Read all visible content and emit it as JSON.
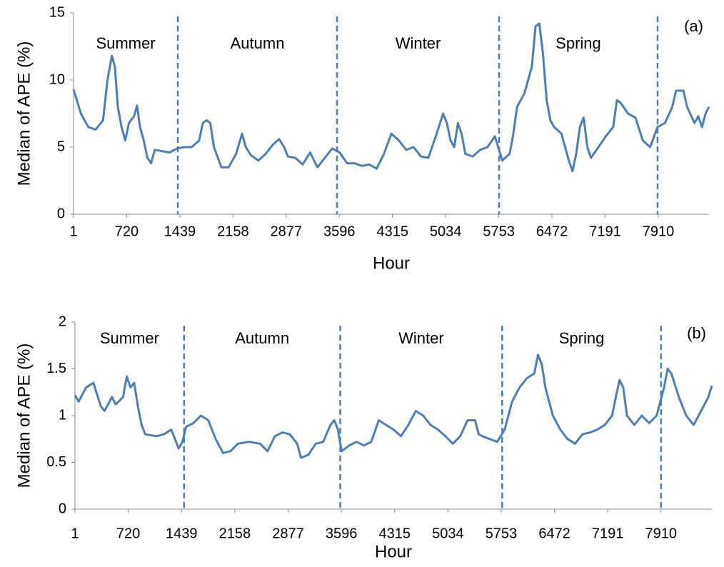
{
  "chart_data": [
    {
      "type": "line",
      "panel_label": "(a)",
      "y_label": "Median of APE (%)",
      "x_label": "Hour",
      "xlim": [
        1,
        8596
      ],
      "xticks": [
        1,
        720,
        1439,
        2158,
        2877,
        3596,
        4315,
        5034,
        5753,
        6472,
        7191,
        7910
      ],
      "ylim": [
        0,
        15
      ],
      "yticks": [
        0,
        5,
        10,
        15
      ],
      "seasons": [
        "Summer",
        "Autumn",
        "Winter",
        "Spring"
      ],
      "boundaries": [
        1411,
        3565,
        5757,
        7900
      ],
      "series": [
        {
          "color": "#4a7ebb",
          "x": [
            1,
            100,
            200,
            300,
            400,
            460,
            520,
            560,
            600,
            650,
            700,
            750,
            820,
            860,
            900,
            950,
            1000,
            1050,
            1100,
            1200,
            1300,
            1400,
            1500,
            1600,
            1700,
            1750,
            1800,
            1850,
            1900,
            2000,
            2100,
            2200,
            2280,
            2330,
            2400,
            2500,
            2600,
            2700,
            2780,
            2850,
            2900,
            3000,
            3100,
            3200,
            3300,
            3400,
            3500,
            3600,
            3700,
            3800,
            3900,
            4000,
            4100,
            4200,
            4300,
            4400,
            4500,
            4600,
            4700,
            4800,
            4900,
            5000,
            5050,
            5100,
            5150,
            5200,
            5250,
            5300,
            5400,
            5500,
            5600,
            5700,
            5800,
            5900,
            5950,
            6000,
            6100,
            6200,
            6250,
            6300,
            6350,
            6400,
            6450,
            6500,
            6600,
            6700,
            6750,
            6800,
            6850,
            6900,
            6950,
            7000,
            7100,
            7200,
            7300,
            7350,
            7400,
            7500,
            7600,
            7700,
            7800,
            7900,
            8000,
            8100,
            8150,
            8250,
            8300,
            8400,
            8450,
            8500,
            8550,
            8596
          ],
          "values": [
            9.3,
            7.5,
            6.5,
            6.3,
            7.0,
            10,
            11.8,
            11,
            8,
            6.5,
            5.5,
            6.8,
            7.3,
            8.1,
            6.5,
            5.5,
            4.2,
            3.8,
            4.8,
            4.7,
            4.6,
            4.9,
            5.0,
            5.0,
            5.5,
            6.8,
            7.0,
            6.8,
            5.0,
            3.5,
            3.5,
            4.5,
            6.0,
            5.0,
            4.4,
            4.0,
            4.5,
            5.2,
            5.6,
            5.0,
            4.3,
            4.2,
            3.7,
            4.6,
            3.5,
            4.2,
            4.9,
            4.6,
            3.8,
            3.8,
            3.6,
            3.7,
            3.4,
            4.5,
            6.0,
            5.5,
            4.8,
            5.0,
            4.3,
            4.2,
            5.8,
            7.5,
            6.8,
            5.5,
            5.0,
            6.8,
            6.0,
            4.5,
            4.3,
            4.8,
            5.0,
            5.8,
            4.0,
            4.5,
            6.0,
            8.0,
            9.0,
            11.0,
            14.0,
            14.2,
            12.0,
            8.5,
            7.0,
            6.5,
            6.0,
            4.0,
            3.2,
            4.5,
            6.5,
            7.2,
            5.0,
            4.2,
            5.0,
            5.8,
            6.5,
            8.5,
            8.3,
            7.5,
            7.2,
            5.5,
            5.0,
            6.5,
            6.8,
            8.0,
            9.2,
            9.2,
            8.0,
            6.8,
            7.3,
            6.5,
            7.5,
            8.0
          ]
        }
      ]
    },
    {
      "type": "line",
      "panel_label": "(b)",
      "y_label": "Median of APE (%)",
      "x_label": "Hour",
      "xlim": [
        1,
        8596
      ],
      "xticks": [
        1,
        720,
        1439,
        2158,
        2877,
        3596,
        4315,
        5034,
        5753,
        6472,
        7191,
        7910
      ],
      "ylim": [
        0,
        2
      ],
      "yticks": [
        0,
        0.5,
        1,
        1.5,
        2
      ],
      "seasons": [
        "Summer",
        "Autumn",
        "Winter",
        "Spring"
      ],
      "boundaries": [
        1473,
        3581,
        5766,
        7910
      ],
      "series": [
        {
          "color": "#4a7ebb",
          "x": [
            1,
            50,
            150,
            250,
            350,
            400,
            500,
            550,
            650,
            700,
            750,
            800,
            850,
            900,
            950,
            1100,
            1200,
            1300,
            1400,
            1450,
            1500,
            1600,
            1700,
            1800,
            1900,
            2000,
            2100,
            2200,
            2350,
            2500,
            2600,
            2700,
            2800,
            2900,
            3000,
            3050,
            3150,
            3250,
            3350,
            3450,
            3500,
            3550,
            3600,
            3700,
            3800,
            3900,
            4000,
            4100,
            4200,
            4300,
            4400,
            4500,
            4600,
            4700,
            4800,
            4900,
            5000,
            5100,
            5200,
            5300,
            5400,
            5450,
            5500,
            5600,
            5700,
            5800,
            5900,
            6000,
            6100,
            6200,
            6250,
            6300,
            6350,
            6450,
            6550,
            6650,
            6750,
            6850,
            6950,
            7050,
            7150,
            7250,
            7300,
            7350,
            7400,
            7450,
            7550,
            7650,
            7750,
            7850,
            7950,
            8000,
            8050,
            8150,
            8250,
            8350,
            8450,
            8550,
            8596
          ],
          "values": [
            1.22,
            1.15,
            1.3,
            1.35,
            1.1,
            1.05,
            1.2,
            1.12,
            1.2,
            1.42,
            1.3,
            1.35,
            1.1,
            0.9,
            0.8,
            0.78,
            0.8,
            0.85,
            0.65,
            0.72,
            0.88,
            0.92,
            1.0,
            0.95,
            0.75,
            0.6,
            0.62,
            0.7,
            0.72,
            0.7,
            0.62,
            0.78,
            0.82,
            0.8,
            0.7,
            0.55,
            0.58,
            0.7,
            0.72,
            0.9,
            0.95,
            0.85,
            0.62,
            0.68,
            0.72,
            0.68,
            0.72,
            0.95,
            0.9,
            0.85,
            0.78,
            0.9,
            1.05,
            1.0,
            0.9,
            0.85,
            0.78,
            0.7,
            0.78,
            0.95,
            0.95,
            0.8,
            0.78,
            0.75,
            0.72,
            0.85,
            1.15,
            1.3,
            1.4,
            1.45,
            1.65,
            1.55,
            1.3,
            1.0,
            0.85,
            0.75,
            0.7,
            0.8,
            0.82,
            0.85,
            0.9,
            1.0,
            1.2,
            1.38,
            1.3,
            1.0,
            0.9,
            1.0,
            0.92,
            1.0,
            1.3,
            1.5,
            1.45,
            1.2,
            1.0,
            0.9,
            1.05,
            1.2,
            1.32
          ]
        }
      ]
    }
  ]
}
